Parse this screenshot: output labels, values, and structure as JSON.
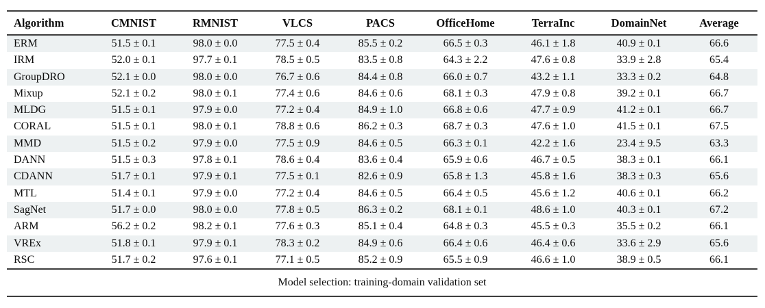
{
  "table": {
    "columns": [
      "Algorithm",
      "CMNIST",
      "RMNIST",
      "VLCS",
      "PACS",
      "OfficeHome",
      "TerraInc",
      "DomainNet",
      "Average"
    ],
    "rows": [
      {
        "algorithm": "ERM",
        "values": [
          "51.5 ± 0.1",
          "98.0 ± 0.0",
          "77.5 ± 0.4",
          "85.5 ± 0.2",
          "66.5 ± 0.3",
          "46.1 ± 1.8",
          "40.9 ± 0.1",
          "66.6"
        ]
      },
      {
        "algorithm": "IRM",
        "values": [
          "52.0 ± 0.1",
          "97.7 ± 0.1",
          "78.5 ± 0.5",
          "83.5 ± 0.8",
          "64.3 ± 2.2",
          "47.6 ± 0.8",
          "33.9 ± 2.8",
          "65.4"
        ]
      },
      {
        "algorithm": "GroupDRO",
        "values": [
          "52.1 ± 0.0",
          "98.0 ± 0.0",
          "76.7 ± 0.6",
          "84.4 ± 0.8",
          "66.0 ± 0.7",
          "43.2 ± 1.1",
          "33.3 ± 0.2",
          "64.8"
        ]
      },
      {
        "algorithm": "Mixup",
        "values": [
          "52.1 ± 0.2",
          "98.0 ± 0.1",
          "77.4 ± 0.6",
          "84.6 ± 0.6",
          "68.1 ± 0.3",
          "47.9 ± 0.8",
          "39.2 ± 0.1",
          "66.7"
        ]
      },
      {
        "algorithm": "MLDG",
        "values": [
          "51.5 ± 0.1",
          "97.9 ± 0.0",
          "77.2 ± 0.4",
          "84.9 ± 1.0",
          "66.8 ± 0.6",
          "47.7 ± 0.9",
          "41.2 ± 0.1",
          "66.7"
        ]
      },
      {
        "algorithm": "CORAL",
        "values": [
          "51.5 ± 0.1",
          "98.0 ± 0.1",
          "78.8 ± 0.6",
          "86.2 ± 0.3",
          "68.7 ± 0.3",
          "47.6 ± 1.0",
          "41.5 ± 0.1",
          "67.5"
        ]
      },
      {
        "algorithm": "MMD",
        "values": [
          "51.5 ± 0.2",
          "97.9 ± 0.0",
          "77.5 ± 0.9",
          "84.6 ± 0.5",
          "66.3 ± 0.1",
          "42.2 ± 1.6",
          "23.4 ± 9.5",
          "63.3"
        ]
      },
      {
        "algorithm": "DANN",
        "values": [
          "51.5 ± 0.3",
          "97.8 ± 0.1",
          "78.6 ± 0.4",
          "83.6 ± 0.4",
          "65.9 ± 0.6",
          "46.7 ± 0.5",
          "38.3 ± 0.1",
          "66.1"
        ]
      },
      {
        "algorithm": "CDANN",
        "values": [
          "51.7 ± 0.1",
          "97.9 ± 0.1",
          "77.5 ± 0.1",
          "82.6 ± 0.9",
          "65.8 ± 1.3",
          "45.8 ± 1.6",
          "38.3 ± 0.3",
          "65.6"
        ]
      },
      {
        "algorithm": "MTL",
        "values": [
          "51.4 ± 0.1",
          "97.9 ± 0.0",
          "77.2 ± 0.4",
          "84.6 ± 0.5",
          "66.4 ± 0.5",
          "45.6 ± 1.2",
          "40.6 ± 0.1",
          "66.2"
        ]
      },
      {
        "algorithm": "SagNet",
        "values": [
          "51.7 ± 0.0",
          "98.0 ± 0.0",
          "77.8 ± 0.5",
          "86.3 ± 0.2",
          "68.1 ± 0.1",
          "48.6 ± 1.0",
          "40.3 ± 0.1",
          "67.2"
        ]
      },
      {
        "algorithm": "ARM",
        "values": [
          "56.2 ± 0.2",
          "98.2 ± 0.1",
          "77.6 ± 0.3",
          "85.1 ± 0.4",
          "64.8 ± 0.3",
          "45.5 ± 0.3",
          "35.5 ± 0.2",
          "66.1"
        ]
      },
      {
        "algorithm": "VREx",
        "values": [
          "51.8 ± 0.1",
          "97.9 ± 0.1",
          "78.3 ± 0.2",
          "84.9 ± 0.6",
          "66.4 ± 0.6",
          "46.4 ± 0.6",
          "33.6 ± 2.9",
          "65.6"
        ]
      },
      {
        "algorithm": "RSC",
        "values": [
          "51.7 ± 0.2",
          "97.6 ± 0.1",
          "77.1 ± 0.5",
          "85.2 ± 0.9",
          "65.5 ± 0.9",
          "46.6 ± 1.0",
          "38.9 ± 0.5",
          "66.1"
        ]
      }
    ],
    "footer": "Model selection: training-domain validation set"
  },
  "colors": {
    "row_shade": "#edf1f2",
    "rule": "#3d3d3d"
  }
}
